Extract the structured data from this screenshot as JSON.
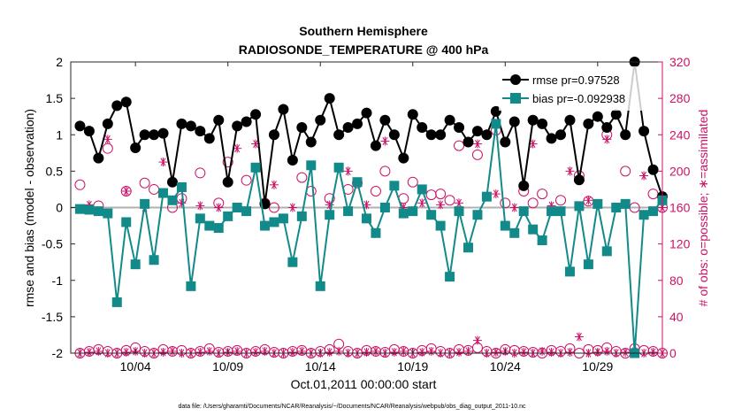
{
  "chart_data": {
    "type": "line",
    "title": "Southern Hemisphere",
    "subtitle": "RADIOSONDE_TEMPERATURE @ 400 hPa",
    "xlabel": "Oct.01,2011 00:00:00 start",
    "ylabel": "rmse and bias (model - observation)",
    "y2label": "# of obs: o=possible; ∗=assimilated",
    "footnote": "data file: /Users/gharamti/Documents/NCAR/Reanalysis/~/Documents/NCAR/Reanalysis/webpub/obs_diag_output_2011-10.nc",
    "xlim": [
      0.5,
      32.5
    ],
    "ylim": [
      -2,
      2
    ],
    "y2lim": [
      0,
      320
    ],
    "xticks": [
      4,
      9,
      14,
      19,
      24,
      29
    ],
    "xticklabels": [
      "10/04",
      "10/09",
      "10/14",
      "10/19",
      "10/24",
      "10/29"
    ],
    "yticks": [
      -2,
      -1.5,
      -1,
      -0.5,
      0,
      0.5,
      1,
      1.5,
      2
    ],
    "yticklabels": [
      "-2",
      "-1.5",
      "-1",
      "-0.5",
      "0",
      "0.5",
      "1",
      "1.5",
      "2"
    ],
    "y2ticks": [
      0,
      40,
      80,
      120,
      160,
      200,
      240,
      280,
      320
    ],
    "y2ticklabels": [
      "0",
      "40",
      "80",
      "120",
      "160",
      "200",
      "240",
      "280",
      "320"
    ],
    "legend": {
      "position": "top-right",
      "entries": [
        "rmse pr=0.97528",
        "bias pr=-0.092938"
      ]
    },
    "colors": {
      "rmse": "#000000",
      "bias": "#138a8a",
      "obs": "#cc1166",
      "zero": "#b0b0b0"
    },
    "series": [
      {
        "name": "rmse",
        "x": [
          1,
          1.5,
          2,
          2.5,
          3,
          3.5,
          4,
          4.5,
          5,
          5.5,
          6,
          6.5,
          7,
          7.5,
          8,
          8.5,
          9,
          9.5,
          10,
          10.5,
          11,
          11.5,
          12,
          12.5,
          13,
          13.5,
          14,
          14.5,
          15,
          15.5,
          16,
          16.5,
          17,
          17.5,
          18,
          18.5,
          19,
          19.5,
          20,
          20.5,
          21,
          21.5,
          22,
          22.5,
          23,
          23.5,
          24,
          24.5,
          25,
          25.5,
          26,
          26.5,
          27,
          27.5,
          28,
          28.5,
          29,
          29.5,
          30,
          30.5,
          31,
          31.5,
          32,
          32.5
        ],
        "values": [
          1.12,
          1.05,
          0.68,
          1.15,
          1.4,
          1.45,
          0.82,
          1.0,
          1.0,
          1.02,
          0.35,
          1.15,
          1.12,
          1.05,
          0.95,
          1.2,
          0.35,
          1.12,
          1.18,
          1.28,
          0.05,
          1.0,
          1.35,
          0.65,
          1.1,
          0.9,
          1.2,
          1.5,
          1.0,
          1.1,
          1.15,
          1.3,
          0.85,
          1.2,
          1.0,
          0.68,
          1.28,
          1.1,
          1.0,
          1.0,
          1.2,
          1.1,
          0.9,
          1.05,
          1.0,
          1.32,
          0.9,
          1.18,
          0.3,
          1.2,
          1.15,
          0.95,
          1.0,
          1.2,
          0.38,
          1.15,
          1.25,
          1.1,
          1.28,
          1.0,
          2.0,
          1.05,
          0.52,
          0.15
        ]
      },
      {
        "name": "bias",
        "x": [
          1,
          1.5,
          2,
          2.5,
          3,
          3.5,
          4,
          4.5,
          5,
          5.5,
          6,
          6.5,
          7,
          7.5,
          8,
          8.5,
          9,
          9.5,
          10,
          10.5,
          11,
          11.5,
          12,
          12.5,
          13,
          13.5,
          14,
          14.5,
          15,
          15.5,
          16,
          16.5,
          17,
          17.5,
          18,
          18.5,
          19,
          19.5,
          20,
          20.5,
          21,
          21.5,
          22,
          22.5,
          23,
          23.5,
          24,
          24.5,
          25,
          25.5,
          26,
          26.5,
          27,
          27.5,
          28,
          28.5,
          29,
          29.5,
          30,
          30.5,
          31,
          31.5,
          32,
          32.5
        ],
        "values": [
          -0.02,
          -0.03,
          -0.05,
          -0.08,
          -1.3,
          -0.2,
          -0.78,
          0.05,
          -0.72,
          0.2,
          0.1,
          0.28,
          -1.08,
          -0.15,
          -0.25,
          -0.28,
          -0.12,
          0.0,
          -0.05,
          0.55,
          -0.25,
          -0.2,
          -0.15,
          -0.75,
          -0.12,
          0.58,
          -1.08,
          -0.1,
          0.55,
          -0.05,
          0.35,
          -0.15,
          -0.35,
          0.0,
          0.3,
          -0.08,
          -0.05,
          0.25,
          -0.1,
          -0.25,
          -0.95,
          -0.05,
          -0.55,
          -0.1,
          0.15,
          1.15,
          -0.25,
          -0.35,
          -0.05,
          -0.3,
          -0.45,
          -0.05,
          -0.05,
          -0.88,
          0.02,
          -0.78,
          0.05,
          -0.6,
          0.0,
          0.05,
          -2.0,
          -0.1,
          -0.05,
          0.1
        ]
      },
      {
        "name": "obs possible",
        "x": [
          1,
          1.5,
          2,
          2.5,
          3,
          3.5,
          4,
          4.5,
          5,
          5.5,
          6,
          6.5,
          7,
          7.5,
          8,
          8.5,
          9,
          9.5,
          10,
          10.5,
          11,
          11.5,
          12,
          12.5,
          13,
          13.5,
          14,
          14.5,
          15,
          15.5,
          16,
          16.5,
          17,
          17.5,
          18,
          18.5,
          19,
          19.5,
          20,
          20.5,
          21,
          21.5,
          22,
          22.5,
          23,
          23.5,
          24,
          24.5,
          25,
          25.5,
          26,
          26.5,
          27,
          27.5,
          28,
          28.5,
          29,
          29.5,
          30,
          30.5,
          31,
          31.5,
          32,
          32.5
        ],
        "values": [
          0,
          2,
          4,
          2,
          0,
          3,
          6,
          2,
          0,
          4,
          2,
          3,
          0,
          2,
          5,
          1,
          2,
          3,
          0,
          2,
          4,
          1,
          0,
          2,
          3,
          0,
          2,
          4,
          10,
          2,
          0,
          3,
          2,
          1,
          4,
          2,
          0,
          3,
          5,
          2,
          0,
          4,
          3,
          6,
          2,
          0,
          4,
          3,
          2,
          1,
          0,
          3,
          2,
          5,
          0,
          4,
          3,
          6,
          2,
          0,
          5,
          3,
          2,
          0
        ]
      },
      {
        "name": "obs assimilated",
        "x": [
          1,
          1.5,
          2,
          2.5,
          3,
          3.5,
          4,
          4.5,
          5,
          5.5,
          6,
          6.5,
          7,
          7.5,
          8,
          8.5,
          9,
          9.5,
          10,
          10.5,
          11,
          11.5,
          12,
          12.5,
          13,
          13.5,
          14,
          14.5,
          15,
          15.5,
          16,
          16.5,
          17,
          17.5,
          18,
          18.5,
          19,
          19.5,
          20,
          20.5,
          21,
          21.5,
          22,
          22.5,
          23,
          23.5,
          24,
          24.5,
          25,
          25.5,
          26,
          26.5,
          27,
          27.5,
          28,
          28.5,
          29,
          29.5,
          30,
          30.5,
          31,
          31.5,
          32,
          32.5
        ],
        "values": [
          0,
          1,
          2,
          0,
          0,
          1,
          2,
          0,
          0,
          1,
          2,
          0,
          0,
          1,
          2,
          0,
          1,
          2,
          0,
          1,
          2,
          0,
          0,
          1,
          2,
          0,
          0,
          1,
          2,
          0,
          0,
          1,
          2,
          0,
          1,
          2,
          0,
          1,
          2,
          0,
          0,
          1,
          2,
          14,
          0,
          1,
          2,
          0,
          1,
          0,
          2,
          1,
          0,
          1,
          18,
          0,
          1,
          2,
          0,
          1,
          2,
          0,
          1,
          0
        ]
      },
      {
        "name": "obs possible (upper)",
        "x": [
          1,
          2,
          2.5,
          3.5,
          4.5,
          5,
          6,
          6.5,
          7.5,
          8.5,
          9,
          10,
          11,
          11.5,
          13,
          13.5,
          14.5,
          15.5,
          16,
          17,
          17.5,
          18.5,
          19,
          20,
          20.5,
          21,
          21.5,
          22.5,
          23.5,
          24,
          25,
          25.5,
          26,
          27,
          28,
          28.5,
          29.5,
          30.5,
          31,
          32,
          32.5
        ],
        "values": [
          185,
          162,
          225,
          178,
          187,
          180,
          160,
          170,
          198,
          165,
          210,
          190,
          165,
          160,
          193,
          178,
          170,
          180,
          187,
          178,
          200,
          170,
          188,
          174,
          175,
          168,
          228,
          218,
          245,
          165,
          178,
          165,
          175,
          168,
          195,
          167,
          240,
          200,
          160,
          175,
          160
        ]
      },
      {
        "name": "obs assimilated (upper)",
        "x": [
          1.5,
          2.5,
          3.5,
          4.5,
          5.5,
          6.5,
          7.5,
          8.5,
          9.5,
          10.5,
          11.5,
          12.5,
          13.5,
          14.5,
          15.5,
          16.5,
          17.5,
          18.5,
          19.5,
          20.5,
          21.5,
          22.5,
          23.5,
          24.5,
          25.5,
          26.5,
          27.5,
          28.5,
          29.5,
          30.5,
          31.5,
          32.5
        ],
        "values": [
          163,
          235,
          178,
          160,
          210,
          165,
          162,
          160,
          225,
          230,
          185,
          160,
          232,
          163,
          200,
          163,
          233,
          160,
          165,
          163,
          165,
          230,
          175,
          160,
          230,
          162,
          200,
          168,
          235,
          163,
          195,
          160
        ]
      }
    ]
  }
}
